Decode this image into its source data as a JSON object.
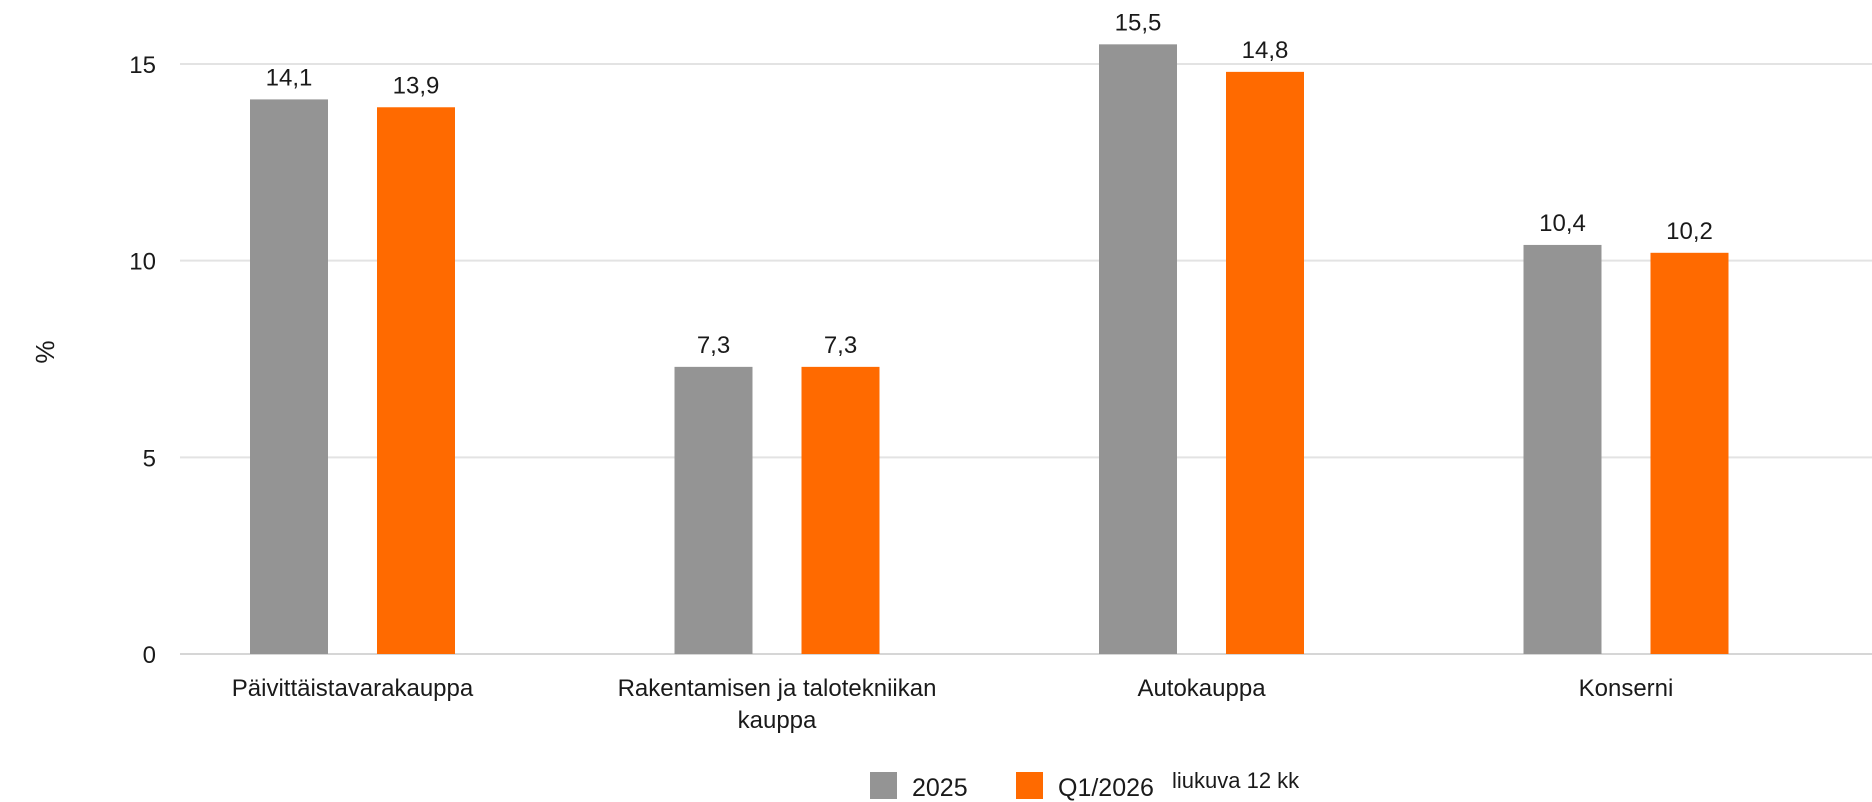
{
  "chart_data": {
    "type": "bar",
    "ylabel": "%",
    "ylim": [
      0,
      15
    ],
    "yticks": [
      0,
      5,
      10,
      15
    ],
    "grid": true,
    "legend_position": "bottom-center",
    "categories": [
      [
        "Päivittäistavarakauppa"
      ],
      [
        "Rakentamisen ja talotekniikan",
        "kauppa"
      ],
      [
        "Autokauppa"
      ],
      [
        "Konserni"
      ]
    ],
    "series": [
      {
        "name": "2025",
        "color": "#949494",
        "values": [
          14.1,
          7.3,
          15.5,
          10.4
        ],
        "labels": [
          "14,1",
          "7,3",
          "15,5",
          "10,4"
        ]
      },
      {
        "name": "Q1/2026",
        "color": "#ff6a00",
        "values": [
          13.9,
          7.3,
          14.8,
          10.2
        ],
        "labels": [
          "13,9",
          "7,3",
          "14,8",
          "10,2"
        ]
      }
    ],
    "legend_suffix": "liukuva 12 kk"
  }
}
